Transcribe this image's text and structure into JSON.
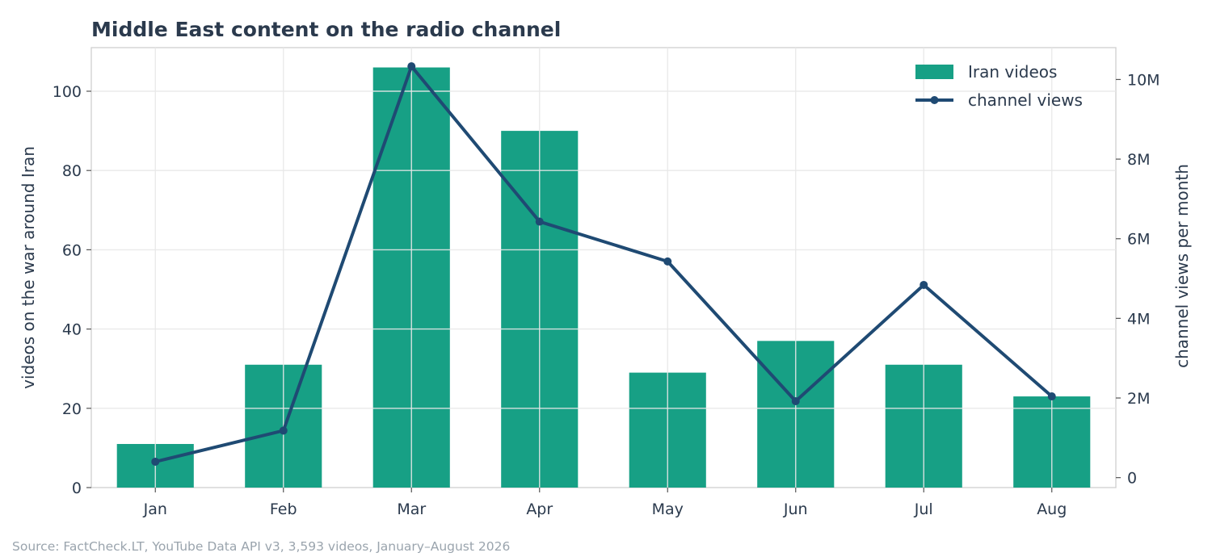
{
  "chart_data": {
    "type": "bar",
    "title": "Middle East content on the radio channel",
    "categories": [
      "Jan",
      "Feb",
      "Mar",
      "Apr",
      "May",
      "Jun",
      "Jul",
      "Aug"
    ],
    "series": [
      {
        "name": "Iran videos",
        "type": "bar",
        "axis": "left",
        "color": "#17a085",
        "values": [
          11,
          31,
          106,
          90,
          29,
          37,
          31,
          23
        ]
      },
      {
        "name": "channel views",
        "type": "line",
        "axis": "right",
        "color": "#1f4a73",
        "values": [
          400000,
          1180000,
          10330000,
          6430000,
          5430000,
          1920000,
          4840000,
          2040000
        ]
      }
    ],
    "ylabel": "videos on the war around Iran",
    "ylim": [
      0,
      111
    ],
    "yticks": [
      0,
      20,
      40,
      60,
      80,
      100
    ],
    "y2label": "channel views per month",
    "y2lim": [
      -250000,
      10800000
    ],
    "y2ticks": [
      0,
      2000000,
      4000000,
      6000000,
      8000000,
      10000000
    ],
    "y2ticklabels": [
      "0",
      "2M",
      "4M",
      "6M",
      "8M",
      "10M"
    ],
    "grid": true,
    "legend": "top-right"
  },
  "source": "Source: FactCheck.LT, YouTube Data API v3, 3,593 videos, January–August 2026"
}
